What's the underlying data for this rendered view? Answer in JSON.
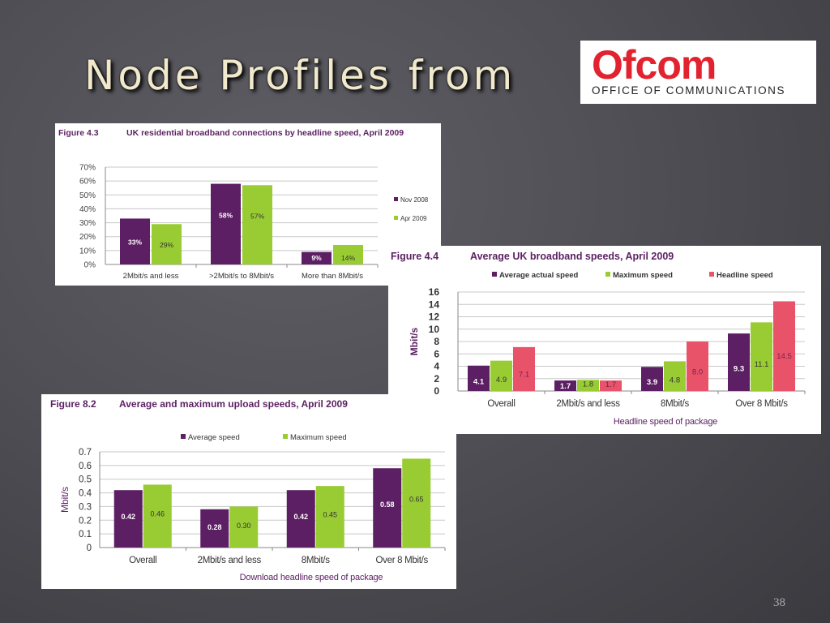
{
  "slide": {
    "title": "Node Profiles from",
    "number": "38",
    "logo": {
      "word": "Ofcom",
      "subtitle": "OFFICE OF COMMUNICATIONS"
    }
  },
  "colors": {
    "purple": "#5c1f63",
    "green": "#99cc33",
    "red": "#e8536a",
    "red_text": "#7a1f4a"
  },
  "chart_data": [
    {
      "id": "fig43",
      "type": "bar",
      "figure": "Figure 4.3",
      "title": "UK residential broadband connections by headline speed, April 2009",
      "categories": [
        "2Mbit/s and less",
        ">2Mbit/s to 8Mbit/s",
        "More than 8Mbit/s"
      ],
      "series": [
        {
          "name": "Nov 2008",
          "values": [
            33,
            58,
            9
          ],
          "labels": [
            "33%",
            "58%",
            "9%"
          ]
        },
        {
          "name": "Apr 2009",
          "values": [
            29,
            57,
            14
          ],
          "labels": [
            "29%",
            "57%",
            "14%"
          ]
        }
      ],
      "yticks": [
        "0%",
        "10%",
        "20%",
        "30%",
        "40%",
        "50%",
        "60%",
        "70%"
      ],
      "ylim": [
        0,
        70
      ],
      "legend": "right",
      "grid": true
    },
    {
      "id": "fig44",
      "type": "bar",
      "figure": "Figure 4.4",
      "title": "Average UK broadband speeds, April 2009",
      "categories": [
        "Overall",
        "2Mbit/s and less",
        "8Mbit/s",
        "Over 8 Mbit/s"
      ],
      "series": [
        {
          "name": "Average actual speed",
          "values": [
            4.1,
            1.7,
            3.9,
            9.3
          ],
          "labels": [
            "4.1",
            "1.7",
            "3.9",
            "9.3"
          ]
        },
        {
          "name": "Maximum speed",
          "values": [
            4.9,
            1.8,
            4.8,
            11.1
          ],
          "labels": [
            "4.9",
            "1.8",
            "4.8",
            "11.1"
          ]
        },
        {
          "name": "Headline speed",
          "values": [
            7.1,
            1.7,
            8.0,
            14.5
          ],
          "labels": [
            "7.1",
            "1.7",
            "8.0",
            "14.5"
          ]
        }
      ],
      "yticks": [
        "0",
        "2",
        "4",
        "6",
        "8",
        "10",
        "12",
        "14",
        "16"
      ],
      "ylim": [
        0,
        16
      ],
      "ylabel": "Mbit/s",
      "xlabel": "Headline speed of package",
      "legend": "top",
      "grid": true
    },
    {
      "id": "fig82",
      "type": "bar",
      "figure": "Figure 8.2",
      "title": "Average and maximum upload speeds, April 2009",
      "categories": [
        "Overall",
        "2Mbit/s and less",
        "8Mbit/s",
        "Over 8 Mbit/s"
      ],
      "series": [
        {
          "name": "Average speed",
          "values": [
            0.42,
            0.28,
            0.42,
            0.58
          ],
          "labels": [
            "0.42",
            "0.28",
            "0.42",
            "0.58"
          ]
        },
        {
          "name": "Maximum speed",
          "values": [
            0.46,
            0.3,
            0.45,
            0.65
          ],
          "labels": [
            "0.46",
            "0.30",
            "0.45",
            "0.65"
          ]
        }
      ],
      "yticks": [
        "0",
        "0.1",
        "0.2",
        "0.3",
        "0.4",
        "0.5",
        "0.6",
        "0.7"
      ],
      "ylim": [
        0,
        0.7
      ],
      "ylabel": "Mbit/s",
      "xlabel": "Download headline speed of package",
      "legend": "top",
      "grid": true
    }
  ]
}
